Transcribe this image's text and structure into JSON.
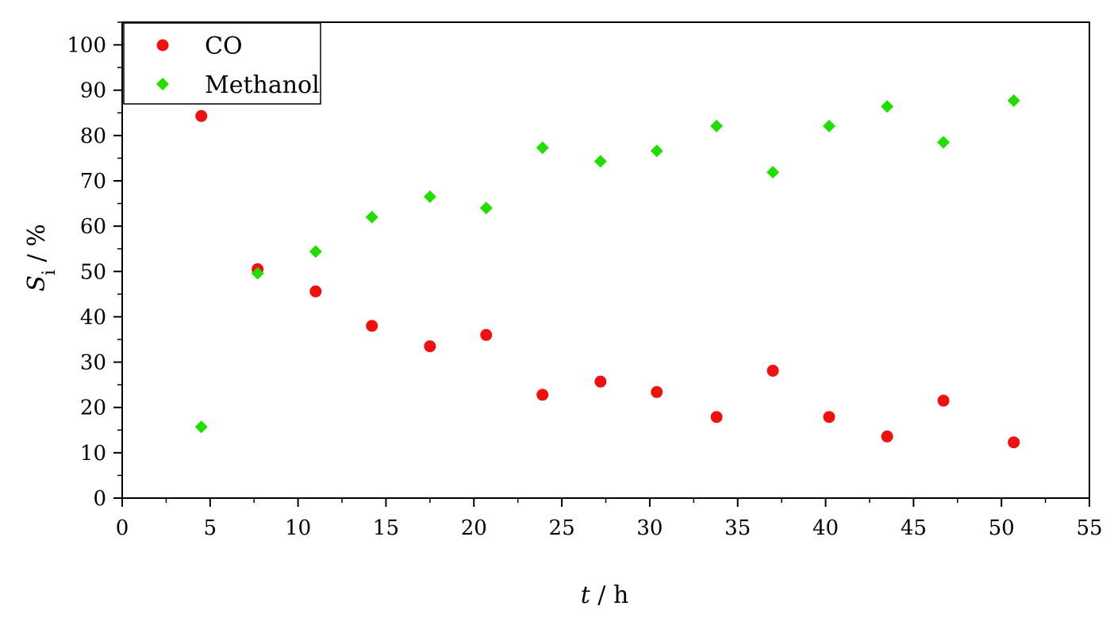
{
  "chart_data": {
    "type": "scatter",
    "title": "",
    "xlabel": {
      "symbol": "t",
      "unit": " / h"
    },
    "ylabel": {
      "symbol": "S",
      "subscript": "i",
      "unit": " / %"
    },
    "xlim": [
      0,
      55
    ],
    "ylim": [
      0,
      105
    ],
    "xticks": [
      0,
      5,
      10,
      15,
      20,
      25,
      30,
      35,
      40,
      45,
      50,
      55
    ],
    "yticks": [
      0,
      10,
      20,
      30,
      40,
      50,
      60,
      70,
      80,
      90,
      100
    ],
    "grid": false,
    "legend_position": "top-left",
    "series": [
      {
        "name": "CO",
        "marker": "circle",
        "color": "#ee1111",
        "x": [
          4.5,
          7.7,
          11.0,
          14.2,
          17.5,
          20.7,
          23.9,
          27.2,
          30.4,
          33.8,
          37.0,
          40.2,
          43.5,
          46.7,
          50.7
        ],
        "y": [
          84.3,
          50.5,
          45.6,
          38.0,
          33.5,
          36.0,
          22.8,
          25.7,
          23.4,
          17.9,
          28.1,
          17.9,
          13.6,
          21.5,
          12.3
        ]
      },
      {
        "name": "Methanol",
        "marker": "diamond",
        "color": "#22dd00",
        "x": [
          4.5,
          7.7,
          11.0,
          14.2,
          17.5,
          20.7,
          23.9,
          27.2,
          30.4,
          33.8,
          37.0,
          40.2,
          43.5,
          46.7,
          50.7
        ],
        "y": [
          15.7,
          49.6,
          54.4,
          62.0,
          66.5,
          64.0,
          77.3,
          74.3,
          76.6,
          82.1,
          71.9,
          82.1,
          86.4,
          78.5,
          87.7
        ]
      }
    ]
  }
}
